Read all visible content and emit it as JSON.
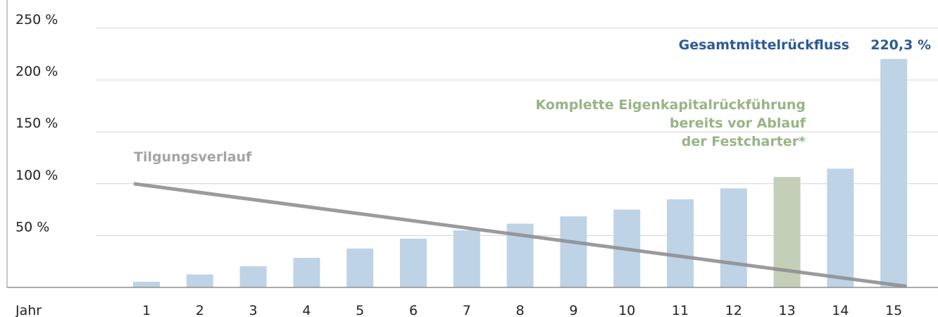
{
  "chart_data": {
    "type": "bar",
    "categories": [
      "1",
      "2",
      "3",
      "4",
      "5",
      "6",
      "7",
      "8",
      "9",
      "10",
      "11",
      "12",
      "13",
      "14",
      "15"
    ],
    "values": [
      5.5,
      12.5,
      20.5,
      28.5,
      37.5,
      47,
      55,
      61.5,
      68.5,
      75,
      85,
      95.5,
      106.5,
      114.5,
      220.3
    ],
    "highlight_index": 12,
    "xlabel": "Jahr",
    "ylim": [
      0,
      250
    ],
    "yticks": [
      {
        "value": 50,
        "label": "50 %"
      },
      {
        "value": 100,
        "label": "100 %"
      },
      {
        "value": 150,
        "label": "150 %"
      },
      {
        "value": 200,
        "label": "200 %"
      },
      {
        "value": 250,
        "label": "250 %"
      }
    ],
    "line": {
      "name": "Tilgungsverlauf",
      "start": {
        "x": "1",
        "y": 100
      },
      "end": {
        "x": "15",
        "y": 1
      }
    },
    "annotations": {
      "total_label": "Gesamtmittelrückfluss",
      "total_value": "220,3 %",
      "equity_lines": [
        "Komplette Eigenkapitalrückführung",
        "bereits vor Ablauf",
        "der Festcharter*"
      ]
    },
    "grid": true,
    "colors": {
      "bar": "#bed3e5",
      "highlight": "#c3d0b7",
      "line": "#8e8e92",
      "grid": "#d3d3d3",
      "axis": "#8f8f8f",
      "total_text": "#2d5a96",
      "equity_text": "#98b487",
      "line_text": "#a4a4a4"
    }
  }
}
